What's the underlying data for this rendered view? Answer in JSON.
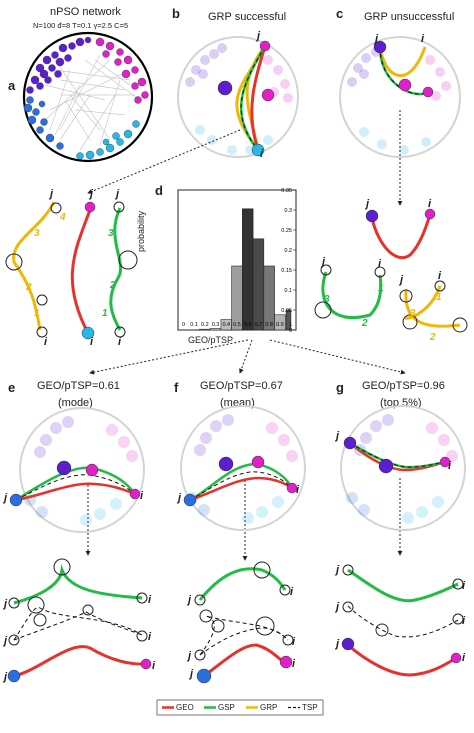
{
  "panels": {
    "a": {
      "letter": "a",
      "title": "nPSO network",
      "subtitle": "N=100 đ=8 T=0.1 γ=2.5 C=5"
    },
    "b": {
      "letter": "b",
      "title": "GRP successful"
    },
    "c": {
      "letter": "c",
      "title": "GRP unsuccessful"
    },
    "d": {
      "letter": "d"
    },
    "e": {
      "letter": "e",
      "title": "GEO/pTSP=0.61",
      "note": "(mode)"
    },
    "f": {
      "letter": "f",
      "title": "GEO/pTSP=0.67",
      "note": "(mean)"
    },
    "g": {
      "letter": "g",
      "title": "GEO/pTSP=0.96",
      "note": "(top 5%)"
    }
  },
  "node_labels": {
    "i": "i",
    "j": "j"
  },
  "step_labels": [
    "1",
    "2",
    "3",
    "4"
  ],
  "legend": [
    {
      "label": "GEO",
      "color": "#e8302c",
      "dash": false
    },
    {
      "label": "GSP",
      "color": "#22bb44",
      "dash": false
    },
    {
      "label": "GRP",
      "color": "#f2b705",
      "dash": false
    },
    {
      "label": "TSP",
      "color": "#111111",
      "dash": true
    }
  ],
  "colors": {
    "geo": "#e8302c",
    "gsp": "#22bb44",
    "grp": "#f2b705",
    "tsp": "#111111",
    "purple": "#5b1fd0",
    "magenta": "#e020c8",
    "cyan": "#28b8e8",
    "blue": "#2a6fe0"
  },
  "chart_data": {
    "type": "bar",
    "xlabel": "GEO/pTSP",
    "ylabel": "probability",
    "ylim": [
      0,
      0.35
    ],
    "yticks": [
      "0",
      "0.05",
      "0.1",
      "0.15",
      "0.2",
      "0.25",
      "0.3",
      "0.35"
    ],
    "xticks": [
      "0",
      "0.1",
      "0.2",
      "0.3",
      "0.4",
      "0.5",
      "0.6",
      "0.7",
      "0.8",
      "0.9",
      "1"
    ],
    "bin_edges": [
      0,
      0.1,
      0.2,
      0.3,
      0.4,
      0.5,
      0.6,
      0.7,
      0.8,
      0.9,
      1.0
    ],
    "values": [
      0.0,
      0.0,
      0.002,
      0.004,
      0.026,
      0.16,
      0.303,
      0.228,
      0.16,
      0.038,
      0.05
    ],
    "bin_centers": [
      0.0,
      0.1,
      0.2,
      0.3,
      0.4,
      0.5,
      0.6,
      0.7,
      0.8,
      0.9,
      0.98
    ]
  }
}
